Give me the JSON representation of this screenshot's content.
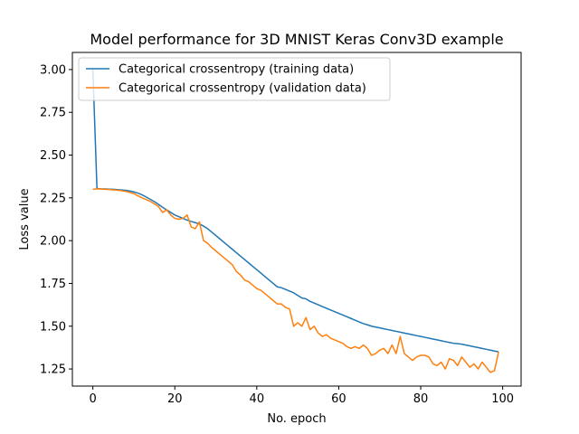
{
  "chart_data": {
    "type": "line",
    "title": "Model performance for 3D MNIST Keras Conv3D example",
    "xlabel": "No. epoch",
    "ylabel": "Loss value",
    "xlim": [
      -5,
      104.5
    ],
    "ylim": [
      1.15,
      3.1
    ],
    "xticks": [
      0,
      20,
      40,
      60,
      80,
      100
    ],
    "yticks": [
      1.25,
      1.5,
      1.75,
      2.0,
      2.25,
      2.5,
      2.75,
      3.0
    ],
    "ytick_labels": [
      "1.25",
      "1.50",
      "1.75",
      "2.00",
      "2.25",
      "2.50",
      "2.75",
      "3.00"
    ],
    "grid": false,
    "legend_position": "upper-left",
    "series": [
      {
        "name": "Categorical crossentropy (training data)",
        "color": "#1f77b4",
        "values": [
          3.0,
          2.305,
          2.303,
          2.302,
          2.301,
          2.3,
          2.298,
          2.296,
          2.294,
          2.29,
          2.285,
          2.278,
          2.268,
          2.255,
          2.242,
          2.228,
          2.212,
          2.195,
          2.18,
          2.165,
          2.15,
          2.14,
          2.13,
          2.12,
          2.112,
          2.105,
          2.098,
          2.085,
          2.07,
          2.05,
          2.03,
          2.01,
          1.99,
          1.97,
          1.95,
          1.93,
          1.91,
          1.89,
          1.87,
          1.85,
          1.83,
          1.81,
          1.79,
          1.77,
          1.75,
          1.73,
          1.725,
          1.715,
          1.705,
          1.695,
          1.68,
          1.665,
          1.66,
          1.645,
          1.635,
          1.625,
          1.615,
          1.605,
          1.595,
          1.585,
          1.575,
          1.565,
          1.555,
          1.545,
          1.535,
          1.525,
          1.515,
          1.508,
          1.5,
          1.495,
          1.49,
          1.485,
          1.48,
          1.475,
          1.47,
          1.465,
          1.46,
          1.455,
          1.45,
          1.445,
          1.44,
          1.435,
          1.43,
          1.425,
          1.42,
          1.415,
          1.41,
          1.405,
          1.4,
          1.398,
          1.395,
          1.39,
          1.385,
          1.38,
          1.375,
          1.37,
          1.365,
          1.36,
          1.355,
          1.35
        ]
      },
      {
        "name": "Categorical crossentropy (validation data)",
        "color": "#ff7f0e",
        "values": [
          2.3,
          2.303,
          2.302,
          2.3,
          2.299,
          2.297,
          2.295,
          2.292,
          2.288,
          2.282,
          2.275,
          2.262,
          2.25,
          2.24,
          2.23,
          2.215,
          2.2,
          2.165,
          2.18,
          2.15,
          2.13,
          2.125,
          2.13,
          2.15,
          2.08,
          2.07,
          2.11,
          2.0,
          1.985,
          1.96,
          1.94,
          1.92,
          1.9,
          1.88,
          1.86,
          1.82,
          1.8,
          1.77,
          1.76,
          1.74,
          1.72,
          1.71,
          1.69,
          1.67,
          1.65,
          1.63,
          1.63,
          1.61,
          1.6,
          1.5,
          1.52,
          1.5,
          1.55,
          1.48,
          1.5,
          1.46,
          1.44,
          1.45,
          1.43,
          1.42,
          1.41,
          1.4,
          1.38,
          1.37,
          1.38,
          1.37,
          1.39,
          1.37,
          1.33,
          1.34,
          1.36,
          1.37,
          1.34,
          1.39,
          1.34,
          1.44,
          1.34,
          1.32,
          1.3,
          1.32,
          1.33,
          1.33,
          1.32,
          1.28,
          1.27,
          1.29,
          1.25,
          1.31,
          1.3,
          1.27,
          1.32,
          1.29,
          1.26,
          1.28,
          1.25,
          1.29,
          1.26,
          1.23,
          1.24,
          1.35
        ]
      }
    ]
  }
}
